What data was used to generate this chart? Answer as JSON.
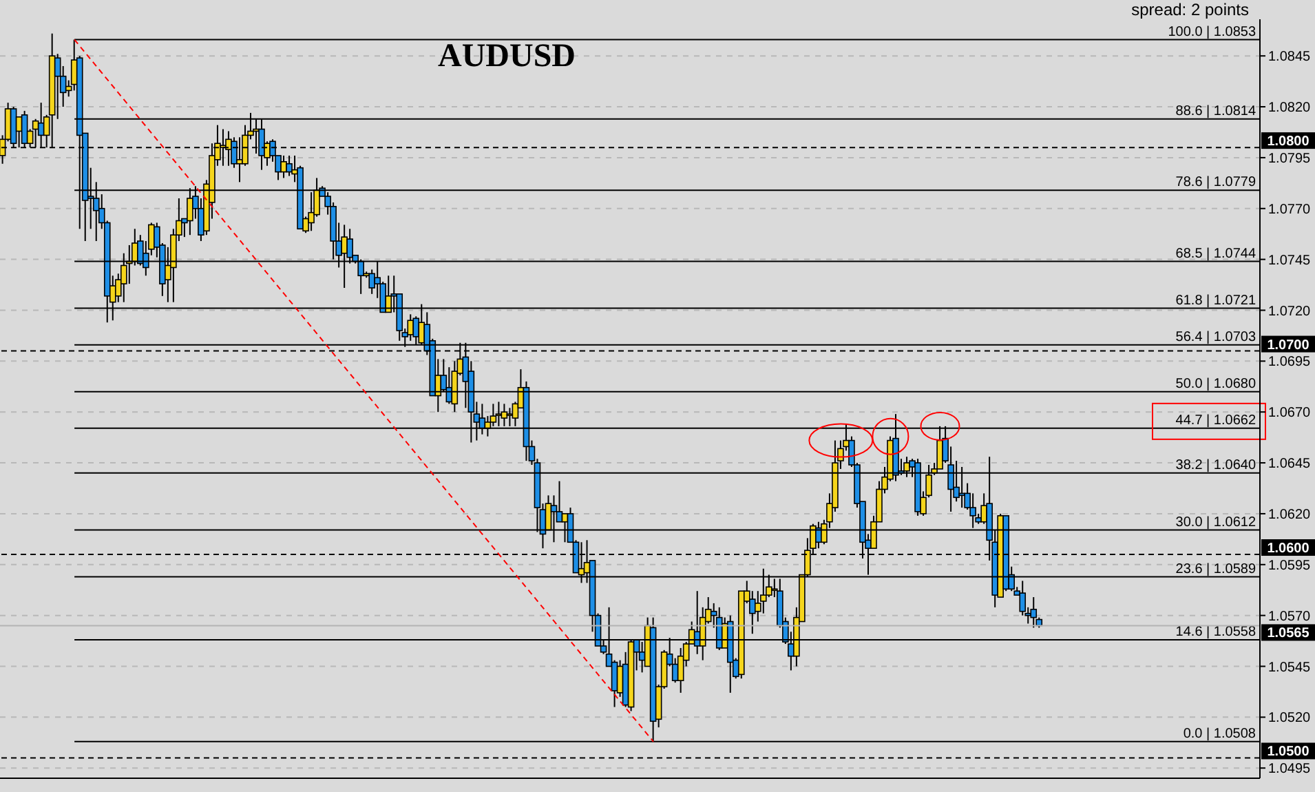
{
  "chart_data": {
    "type": "candlestick",
    "title": "AUDUSD",
    "annotations": [
      "spread: 2 points"
    ],
    "categories": [
      null,
      null,
      null,
      null,
      null,
      null,
      null,
      null,
      null,
      null,
      null,
      null,
      null,
      null,
      null,
      null,
      null,
      null,
      null,
      null,
      null,
      null,
      null,
      null,
      null,
      null,
      null,
      null,
      null,
      null,
      null,
      null,
      null,
      null,
      null,
      null,
      null,
      null,
      null,
      null,
      null,
      null,
      null,
      null,
      null,
      null,
      null,
      null,
      null,
      null,
      null,
      null,
      null,
      null,
      null,
      null,
      null,
      null,
      null,
      null,
      null,
      null,
      null,
      null,
      null,
      null,
      null,
      null,
      null,
      null,
      null,
      null,
      null,
      null,
      null,
      null,
      null,
      null,
      null,
      null,
      null,
      null,
      null,
      null,
      null,
      null,
      null,
      null,
      null,
      null,
      null,
      null,
      null,
      null,
      null,
      null,
      null,
      null,
      null,
      null,
      null,
      null,
      null,
      null,
      null,
      null,
      null,
      null,
      null,
      null,
      null,
      null,
      null,
      null,
      null,
      null,
      null,
      null,
      null,
      null,
      null,
      null,
      null,
      null,
      null,
      null,
      null,
      null,
      null,
      null,
      null,
      null,
      null,
      null,
      null,
      null,
      null,
      null,
      null,
      null,
      null,
      null,
      null,
      null,
      null,
      null,
      null,
      null,
      null,
      null,
      null,
      null,
      null,
      null,
      null,
      null,
      null,
      null,
      null,
      null,
      null,
      null,
      null,
      null,
      null,
      null,
      null,
      null,
      null,
      null,
      null,
      null,
      null,
      null,
      null,
      null,
      null,
      null,
      null,
      null,
      null,
      null,
      null,
      null,
      null,
      null,
      null,
      null,
      null,
      null,
      null,
      null,
      null,
      null,
      null,
      null,
      null,
      null,
      null,
      null,
      null,
      null,
      null,
      null,
      null,
      null,
      null,
      null,
      null,
      null,
      null,
      null,
      null,
      null,
      null,
      null,
      null,
      null,
      null,
      null,
      null,
      null,
      null,
      null,
      null,
      null,
      null,
      null,
      null
    ],
    "colors": [
      "#f5d51c",
      "#f5d51c",
      "#1e8fe6",
      "#f5d51c",
      "#1e8fe6",
      "#f5d51c",
      "#f5d51c",
      "#1e8fe6",
      "#f5d51c",
      "#f5d51c",
      "#1e8fe6",
      "#1e8fe6",
      "#f5d51c",
      "#f5d51c",
      "#1e8fe6",
      "#1e8fe6",
      "#1e8fe6",
      "#1e8fe6",
      "#1e8fe6",
      "#1e8fe6",
      "#f5d51c",
      "#f5d51c",
      "#f5d51c",
      "#f5d51c",
      "#f5d51c",
      "#1e8fe6",
      "#1e8fe6",
      "#f5d51c",
      "#1e8fe6",
      "#1e8fe6",
      "#f5d51c",
      "#f5d51c",
      "#f5d51c",
      "#1e8fe6",
      "#f5d51c",
      "#1e8fe6",
      "#1e8fe6",
      "#f5d51c",
      "#f5d51c",
      "#f5d51c",
      "#f5d51c",
      "#f5d51c",
      "#1e8fe6",
      "#f5d51c",
      "#f5d51c",
      "#f5d51c",
      "#f5d51c",
      "#1e8fe6",
      "#f5d51c",
      "#1e8fe6",
      "#1e8fe6",
      "#f5d51c",
      "#1e8fe6",
      "#f5d51c",
      "#1e8fe6",
      "#f5d51c",
      "#f5d51c",
      "#f5d51c",
      "#1e8fe6",
      "#1e8fe6",
      "#1e8fe6",
      "#1e8fe6",
      "#f5d51c",
      "#1e8fe6",
      "#1e8fe6",
      "#1e8fe6",
      "#f5d51c",
      "#1e8fe6",
      "#1e8fe6",
      "#1e8fe6",
      "#f5d51c",
      "#1e8fe6",
      "#1e8fe6",
      "#1e8fe6",
      "#f5d51c",
      "#1e8fe6",
      "#f5d51c",
      "#1e8fe6",
      "#1e8fe6",
      "#f5d51c",
      "#1e8fe6",
      "#1e8fe6",
      "#f5d51c",
      "#f5d51c",
      "#1e8fe6",
      "#1e8fe6",
      "#1e8fe6",
      "#1e8fe6",
      "#f5d51c",
      "#f5d51c",
      "#f5d51c",
      "#f5d51c",
      "#f5d51c",
      "#f5d51c",
      "#f5d51c",
      "#1e8fe6",
      "#1e8fe6",
      "#1e8fe6",
      "#1e8fe6",
      "#f5d51c",
      "#1e8fe6",
      "#1e8fe6",
      "#f5d51c",
      "#1e8fe6",
      "#1e8fe6",
      "#f5d51c",
      "#f5d51c",
      "#1e8fe6",
      "#1e8fe6",
      "#1e8fe6",
      "#1e8fe6",
      "#1e8fe6",
      "#f5d51c",
      "#1e8fe6",
      "#f5d51c",
      "#1e8fe6",
      "#1e8fe6",
      "#f5d51c",
      "#1e8fe6",
      "#f5d51c",
      "#f5d51c",
      "#1e8fe6",
      "#1e8fe6",
      "#f5d51c",
      "#f5d51c",
      "#f5d51c",
      "#1e8fe6",
      "#f5d51c",
      "#f5d51c",
      "#1e8fe6",
      "#1e8fe6",
      "#f5d51c",
      "#1e8fe6",
      "#1e8fe6",
      "#f5d51c",
      "#f5d51c",
      "#1e8fe6",
      "#f5d51c",
      "#f5d51c",
      "#f5d51c",
      "#f5d51c",
      "#1e8fe6",
      "#1e8fe6",
      "#1e8fe6",
      "#f5d51c",
      "#f5d51c",
      "#f5d51c",
      "#f5d51c",
      "#1e8fe6",
      "#f5d51c",
      "#f5d51c",
      "#f5d51c",
      "#f5d51c",
      "#f5d51c",
      "#1e8fe6",
      "#1e8fe6",
      "#1e8fe6",
      "#1e8fe6",
      "#f5d51c",
      "#f5d51c",
      "#f5d51c",
      "#f5d51c",
      "#1e8fe6",
      "#1e8fe6",
      "#f5d51c",
      "#1e8fe6",
      "#1e8fe6",
      "#f5d51c",
      "#f5d51c",
      "#f5d51c",
      "#f5d51c",
      "#1e8fe6",
      "#1e8fe6",
      "#1e8fe6",
      "#1e8fe6",
      "#1e8fe6",
      "#1e8fe6",
      "#1e8fe6",
      "#f5d51c",
      "#1e8fe6",
      "#1e8fe6",
      "#f5d51c",
      "#1e8fe6",
      "#1e8fe6",
      "#1e8fe6",
      "#1e8fe6",
      "#1e8fe6",
      "#1e8fe6",
      "#1e8fe6",
      null,
      null,
      null,
      null,
      null,
      null,
      null,
      null,
      null,
      null,
      null,
      null,
      null,
      null,
      null,
      null,
      null,
      null,
      null,
      null,
      null,
      null,
      null,
      null,
      null,
      null,
      null,
      null,
      null,
      null,
      null,
      null,
      null,
      null,
      null,
      null,
      null,
      null,
      null,
      null
    ],
    "ohlc": [
      [
        1.0796,
        1.0806,
        1.0792,
        1.0804
      ],
      [
        1.0804,
        1.0822,
        1.0803,
        1.0819
      ],
      [
        1.0819,
        1.082,
        1.08,
        1.0802
      ],
      [
        1.0808,
        1.0815,
        1.08,
        1.0815
      ],
      [
        1.0816,
        1.0818,
        1.08,
        1.0802
      ],
      [
        1.0802,
        1.0809,
        1.08,
        1.0808
      ],
      [
        1.0809,
        1.0814,
        1.08,
        1.0813
      ],
      [
        1.0812,
        1.0822,
        1.08,
        1.0806
      ],
      [
        1.0806,
        1.0816,
        1.08,
        1.0815
      ],
      [
        1.0816,
        1.0856,
        1.08,
        1.0845
      ],
      [
        1.0844,
        1.0846,
        1.0814,
        1.0835
      ],
      [
        1.0835,
        1.084,
        1.082,
        1.0827
      ],
      [
        1.0828,
        1.0833,
        1.0825,
        1.083
      ],
      [
        1.0831,
        1.0853,
        1.0828,
        1.0843
      ],
      [
        1.0844,
        1.0845,
        1.076,
        1.0806
      ],
      [
        1.0807,
        1.0807,
        1.0754,
        1.0774
      ],
      [
        1.0776,
        1.079,
        1.076,
        1.0775
      ],
      [
        1.0775,
        1.0783,
        1.0754,
        1.0769
      ],
      [
        1.077,
        1.0777,
        1.076,
        1.0763
      ],
      [
        1.0763,
        1.0764,
        1.0714,
        1.0727
      ],
      [
        1.0724,
        1.0737,
        1.0715,
        1.0732
      ],
      [
        1.0727,
        1.0738,
        1.0724,
        1.0735
      ],
      [
        1.0733,
        1.0748,
        1.0724,
        1.0742
      ],
      [
        1.0743,
        1.0752,
        1.0733,
        1.0744
      ],
      [
        1.0744,
        1.076,
        1.0742,
        1.0753
      ],
      [
        1.0754,
        1.0757,
        1.0742,
        1.0743
      ],
      [
        1.0748,
        1.0754,
        1.0737,
        1.0741
      ],
      [
        1.075,
        1.0763,
        1.0747,
        1.0762
      ],
      [
        1.0761,
        1.0763,
        1.0746,
        1.0751
      ],
      [
        1.0752,
        1.0753,
        1.0727,
        1.0733
      ],
      [
        1.0735,
        1.0751,
        1.0724,
        1.0742
      ],
      [
        1.0741,
        1.076,
        1.0724,
        1.0757
      ],
      [
        1.0757,
        1.0775,
        1.0754,
        1.0764
      ],
      [
        1.0765,
        1.0765,
        1.0756,
        1.0763
      ],
      [
        1.0764,
        1.078,
        1.0757,
        1.0775
      ],
      [
        1.0776,
        1.0781,
        1.0765,
        1.077
      ],
      [
        1.077,
        1.0775,
        1.0754,
        1.0757
      ],
      [
        1.0759,
        1.0784,
        1.0757,
        1.0782
      ],
      [
        1.0773,
        1.0802,
        1.0765,
        1.0796
      ],
      [
        1.0794,
        1.0811,
        1.0791,
        1.0802
      ],
      [
        1.08,
        1.0809,
        1.0791,
        1.0801
      ],
      [
        1.0799,
        1.0808,
        1.0791,
        1.0804
      ],
      [
        1.0803,
        1.0805,
        1.079,
        1.0792
      ],
      [
        1.0792,
        1.0805,
        1.0783,
        1.0794
      ],
      [
        1.0792,
        1.0811,
        1.0791,
        1.0806
      ],
      [
        1.0806,
        1.0817,
        1.0804,
        1.0808
      ],
      [
        1.0808,
        1.0814,
        1.0797,
        1.0809
      ],
      [
        1.0809,
        1.0814,
        1.0789,
        1.0796
      ],
      [
        1.0795,
        1.0803,
        1.0791,
        1.0802
      ],
      [
        1.0803,
        1.0804,
        1.0793,
        1.0796
      ],
      [
        1.0796,
        1.0796,
        1.0784,
        1.0788
      ],
      [
        1.0788,
        1.0796,
        1.0785,
        1.0793
      ],
      [
        1.0792,
        1.0796,
        1.0786,
        1.0788
      ],
      [
        1.0787,
        1.0796,
        1.0783,
        1.0789
      ],
      [
        1.079,
        1.0791,
        1.076,
        1.076
      ],
      [
        1.0759,
        1.0766,
        1.0758,
        1.0765
      ],
      [
        1.0763,
        1.0778,
        1.0759,
        1.0768
      ],
      [
        1.0767,
        1.0785,
        1.0766,
        1.0779
      ],
      [
        1.078,
        1.0781,
        1.0776,
        1.0776
      ],
      [
        1.0776,
        1.0778,
        1.0767,
        1.0771
      ],
      [
        1.0771,
        1.0773,
        1.0745,
        1.0754
      ],
      [
        1.0754,
        1.0763,
        1.0741,
        1.0747
      ],
      [
        1.0748,
        1.0762,
        1.0731,
        1.0756
      ],
      [
        1.0755,
        1.076,
        1.0743,
        1.0746
      ],
      [
        1.0747,
        1.0747,
        1.0743,
        1.0744
      ],
      [
        1.0744,
        1.0745,
        1.0728,
        1.0737
      ],
      [
        1.0737,
        1.0739,
        1.0736,
        1.0738
      ],
      [
        1.0738,
        1.074,
        1.0728,
        1.0731
      ],
      [
        1.0736,
        1.0744,
        1.0726,
        1.0733
      ],
      [
        1.0733,
        1.0734,
        1.0719,
        1.0719
      ],
      [
        1.0719,
        1.0737,
        1.0719,
        1.0727
      ],
      [
        1.0728,
        1.0737,
        1.0719,
        1.0727
      ],
      [
        1.0728,
        1.0728,
        1.0705,
        1.071
      ],
      [
        1.0709,
        1.0711,
        1.0702,
        1.0707
      ],
      [
        1.0708,
        1.0718,
        1.0705,
        1.0715
      ],
      [
        1.0716,
        1.0717,
        1.0703,
        1.0707
      ],
      [
        1.0704,
        1.0723,
        1.0703,
        1.0714
      ],
      [
        1.0713,
        1.0719,
        1.0698,
        1.07
      ],
      [
        1.0705,
        1.0706,
        1.0678,
        1.0678
      ],
      [
        1.0678,
        1.0696,
        1.067,
        1.0688
      ],
      [
        1.0688,
        1.0696,
        1.068,
        1.0681
      ],
      [
        1.0682,
        1.0692,
        1.0674,
        1.0675
      ],
      [
        1.0674,
        1.0695,
        1.067,
        1.069
      ],
      [
        1.0689,
        1.0704,
        1.0688,
        1.0696
      ],
      [
        1.0697,
        1.0704,
        1.0672,
        1.0685
      ],
      [
        1.069,
        1.0695,
        1.0655,
        1.067
      ],
      [
        1.0669,
        1.0675,
        1.0656,
        1.0665
      ],
      [
        1.0667,
        1.0674,
        1.0659,
        1.0662
      ],
      [
        1.0662,
        1.0668,
        1.0658,
        1.0665
      ],
      [
        1.0665,
        1.0674,
        1.0663,
        1.0668
      ],
      [
        1.0669,
        1.0675,
        1.0663,
        1.0669
      ],
      [
        1.0667,
        1.0674,
        1.0663,
        1.067
      ],
      [
        1.0669,
        1.0672,
        1.0663,
        1.0669
      ],
      [
        1.0667,
        1.0675,
        1.0663,
        1.0674
      ],
      [
        1.0672,
        1.0691,
        1.0672,
        1.0682
      ],
      [
        1.0682,
        1.0685,
        1.0646,
        1.0653
      ],
      [
        1.0653,
        1.0656,
        1.0644,
        1.0646
      ],
      [
        1.0645,
        1.0647,
        1.0611,
        1.0623
      ],
      [
        1.0622,
        1.0625,
        1.0603,
        1.061
      ],
      [
        1.0612,
        1.0629,
        1.0612,
        1.0625
      ],
      [
        1.0624,
        1.0629,
        1.0606,
        1.0621
      ],
      [
        1.0621,
        1.0636,
        1.0616,
        1.0616
      ],
      [
        1.0616,
        1.062,
        1.0606,
        1.062
      ],
      [
        1.062,
        1.0623,
        1.0606,
        1.0606
      ],
      [
        1.0606,
        1.0607,
        1.0591,
        1.0591
      ],
      [
        1.059,
        1.0606,
        1.0586,
        1.0593
      ],
      [
        1.0591,
        1.0607,
        1.0586,
        1.0596
      ],
      [
        1.0597,
        1.0597,
        1.0562,
        1.057
      ],
      [
        1.057,
        1.0571,
        1.0555,
        1.0555
      ],
      [
        1.0555,
        1.0558,
        1.0551,
        1.0552
      ],
      [
        1.0551,
        1.0574,
        1.0545,
        1.0545
      ],
      [
        1.0547,
        1.0548,
        1.0525,
        1.0533
      ],
      [
        1.0532,
        1.0548,
        1.053,
        1.0545
      ],
      [
        1.0546,
        1.0552,
        1.0525,
        1.0526
      ],
      [
        1.0525,
        1.0558,
        1.0523,
        1.0557
      ],
      [
        1.0558,
        1.0558,
        1.0543,
        1.0552
      ],
      [
        1.0552,
        1.0557,
        1.0542,
        1.0548
      ],
      [
        1.0545,
        1.0569,
        1.0545,
        1.0565
      ],
      [
        1.0564,
        1.0569,
        1.0508,
        1.0518
      ],
      [
        1.0519,
        1.0536,
        1.0515,
        1.0535
      ],
      [
        1.0535,
        1.0553,
        1.0534,
        1.0552
      ],
      [
        1.0551,
        1.0559,
        1.0545,
        1.0546
      ],
      [
        1.0546,
        1.0549,
        1.0537,
        1.0538
      ],
      [
        1.0538,
        1.0554,
        1.0532,
        1.055
      ],
      [
        1.0548,
        1.0557,
        1.0545,
        1.0556
      ],
      [
        1.0556,
        1.0567,
        1.0556,
        1.0563
      ],
      [
        1.0562,
        1.0582,
        1.0551,
        1.0555
      ],
      [
        1.0555,
        1.0574,
        1.0548,
        1.0569
      ],
      [
        1.0567,
        1.0579,
        1.0566,
        1.0573
      ],
      [
        1.0572,
        1.0576,
        1.0564,
        1.057
      ],
      [
        1.0569,
        1.0574,
        1.0553,
        1.0554
      ],
      [
        1.0554,
        1.0569,
        1.0554,
        1.0566
      ],
      [
        1.0567,
        1.057,
        1.0532,
        1.0547
      ],
      [
        1.0548,
        1.0549,
        1.0539,
        1.054
      ],
      [
        1.0541,
        1.0582,
        1.0539,
        1.0582
      ],
      [
        1.0577,
        1.0587,
        1.0576,
        1.0582
      ],
      [
        1.0578,
        1.0582,
        1.0561,
        1.0571
      ],
      [
        1.0572,
        1.0582,
        1.0567,
        1.0576
      ],
      [
        1.0577,
        1.0593,
        1.0571,
        1.058
      ],
      [
        1.058,
        1.059,
        1.0579,
        1.0584
      ],
      [
        1.0583,
        1.0588,
        1.0579,
        1.0583
      ],
      [
        1.0582,
        1.0588,
        1.0564,
        1.0565
      ],
      [
        1.0567,
        1.0569,
        1.0556,
        1.0557
      ],
      [
        1.0556,
        1.0562,
        1.0543,
        1.055
      ],
      [
        1.055,
        1.0574,
        1.0545,
        1.0569
      ],
      [
        1.0567,
        1.059,
        1.0567,
        1.059
      ],
      [
        1.059,
        1.0608,
        1.0589,
        1.0602
      ],
      [
        1.0603,
        1.0615,
        1.06,
        1.0614
      ],
      [
        1.0613,
        1.0616,
        1.0603,
        1.0606
      ],
      [
        1.0606,
        1.0617,
        1.0605,
        1.0615
      ],
      [
        1.0616,
        1.063,
        1.0613,
        1.0625
      ],
      [
        1.0623,
        1.0656,
        1.0621,
        1.0645
      ],
      [
        1.0646,
        1.0656,
        1.0642,
        1.0652
      ],
      [
        1.0653,
        1.0664,
        1.0651,
        1.0656
      ],
      [
        1.0656,
        1.0658,
        1.0643,
        1.0644
      ],
      [
        1.0644,
        1.0645,
        1.0623,
        1.0625
      ],
      [
        1.0626,
        1.0626,
        1.0598,
        1.0606
      ],
      [
        1.0607,
        1.061,
        1.059,
        1.0603
      ],
      [
        1.0603,
        1.0619,
        1.0603,
        1.0616
      ],
      [
        1.0616,
        1.0636,
        1.0616,
        1.0632
      ],
      [
        1.0632,
        1.0643,
        1.063,
        1.0638
      ],
      [
        1.0637,
        1.0658,
        1.0636,
        1.0656
      ],
      [
        1.0657,
        1.0669,
        1.0636,
        1.0639
      ],
      [
        1.0641,
        1.0647,
        1.0639,
        1.064
      ],
      [
        1.0641,
        1.0648,
        1.0638,
        1.0645
      ],
      [
        1.0646,
        1.0647,
        1.0638,
        1.0643
      ],
      [
        1.0645,
        1.0647,
        1.0619,
        1.0621
      ],
      [
        1.062,
        1.0631,
        1.0619,
        1.0628
      ],
      [
        1.0629,
        1.0644,
        1.0628,
        1.0639
      ],
      [
        1.064,
        1.0645,
        1.0639,
        1.0642
      ],
      [
        1.0642,
        1.0663,
        1.0642,
        1.0656
      ],
      [
        1.0657,
        1.0663,
        1.0645,
        1.0646
      ],
      [
        1.0644,
        1.0653,
        1.0621,
        1.0632
      ],
      [
        1.0633,
        1.0646,
        1.0626,
        1.0628
      ],
      [
        1.063,
        1.0643,
        1.0623,
        1.0629
      ],
      [
        1.063,
        1.0635,
        1.0622,
        1.0623
      ],
      [
        1.0623,
        1.063,
        1.0613,
        1.0619
      ],
      [
        1.0618,
        1.062,
        1.0615,
        1.0616
      ],
      [
        1.0616,
        1.063,
        1.0615,
        1.0624
      ],
      [
        1.0625,
        1.0648,
        1.0597,
        1.0607
      ],
      [
        1.0606,
        1.0612,
        1.0574,
        1.058
      ],
      [
        1.0579,
        1.062,
        1.0579,
        1.0619
      ],
      [
        1.0619,
        1.0619,
        1.0582,
        1.0583
      ],
      [
        1.059,
        1.0594,
        1.0582,
        1.0583
      ],
      [
        1.0582,
        1.0584,
        1.058,
        1.058
      ],
      [
        1.0581,
        1.0587,
        1.057,
        1.0572
      ],
      [
        1.0571,
        1.0574,
        1.0566,
        1.057
      ],
      [
        1.0573,
        1.0579,
        1.0564,
        1.0569
      ],
      [
        1.0568,
        1.0569,
        1.0564,
        1.0565
      ],
      null,
      null,
      null,
      null,
      null,
      null,
      null,
      null,
      null,
      null,
      null,
      null,
      null,
      null,
      null,
      null,
      null,
      null,
      null,
      null,
      null,
      null,
      null,
      null,
      null,
      null,
      null,
      null,
      null,
      null,
      null,
      null,
      null,
      null,
      null,
      null,
      null,
      null,
      null,
      null
    ],
    "series": [
      {
        "type": "line",
        "color": "#ff0000",
        "line_style": "dashed",
        "values": [
          null,
          null,
          null,
          null,
          null,
          null,
          null,
          null,
          null,
          null,
          null,
          null,
          null,
          1.0853,
          null,
          null,
          null,
          null,
          null,
          null,
          null,
          null,
          null,
          null,
          null,
          null,
          null,
          null,
          null,
          null,
          null,
          null,
          null,
          null,
          null,
          null,
          null,
          null,
          null,
          null,
          null,
          null,
          null,
          null,
          null,
          null,
          null,
          null,
          null,
          null,
          null,
          null,
          null,
          null,
          null,
          null,
          null,
          null,
          null,
          null,
          null,
          null,
          null,
          null,
          null,
          null,
          null,
          null,
          null,
          null,
          null,
          null,
          null,
          null,
          null,
          null,
          null,
          null,
          null,
          null,
          null,
          null,
          null,
          null,
          null,
          null,
          null,
          null,
          null,
          null,
          null,
          null,
          null,
          null,
          null,
          null,
          null,
          null,
          null,
          null,
          null,
          null,
          null,
          null,
          null,
          null,
          null,
          null,
          null,
          null,
          null,
          null,
          null,
          null,
          null,
          null,
          null,
          null,
          1.0508,
          null,
          null,
          null,
          null,
          null,
          null,
          null,
          null,
          null,
          null,
          null,
          null,
          null,
          null,
          null,
          null,
          null,
          null,
          null,
          null,
          null,
          null,
          null,
          null,
          null,
          null,
          null,
          null,
          null,
          null,
          null,
          null,
          null,
          null,
          null,
          null,
          null,
          null,
          null,
          null,
          null,
          null,
          null,
          null,
          null,
          null,
          null,
          null,
          null,
          null,
          null,
          null,
          null,
          null,
          null,
          null,
          null,
          null,
          null,
          null,
          null,
          null,
          null,
          null,
          null,
          null,
          null,
          null,
          null,
          null,
          null,
          null,
          null,
          null,
          null,
          null,
          null,
          null,
          null,
          null,
          null,
          null,
          null,
          null,
          null,
          null,
          null,
          null,
          null,
          null,
          null,
          null,
          null,
          null,
          null,
          null,
          null,
          null,
          null,
          null,
          null,
          null,
          null,
          null,
          null,
          null,
          null,
          null,
          null,
          null
        ]
      }
    ],
    "ylim": [
      1.049,
      1.0863
    ],
    "yticks": [
      1.0495,
      {
        "value": 1.052,
        "label": "1.0520"
      },
      1.0545,
      {
        "value": 1.057,
        "label": "1.0570"
      },
      1.0595,
      {
        "value": 1.062,
        "label": "1.0620"
      },
      1.0645,
      {
        "value": 1.067,
        "label": "1.0670"
      },
      1.0695,
      {
        "value": 1.072,
        "label": "1.0720"
      },
      1.0745,
      {
        "value": 1.077,
        "label": "1.0770"
      },
      1.0795,
      {
        "value": 1.082,
        "label": "1.0820"
      },
      1.0845
    ],
    "ref_lines": [
      {
        "axis": "y",
        "value": 1.0853,
        "label": "100.0 | 1.0853",
        "color": "#000000",
        "line_style": "solid"
      },
      {
        "axis": "y",
        "value": 1.0814,
        "label": "88.6 | 1.0814",
        "color": "#000000",
        "line_style": "solid"
      },
      {
        "axis": "y",
        "value": 1.0779,
        "label": "78.6 | 1.0779",
        "color": "#000000",
        "line_style": "solid"
      },
      {
        "axis": "y",
        "value": 1.0744,
        "label": "68.5 | 1.0744",
        "color": "#000000",
        "line_style": "solid"
      },
      {
        "axis": "y",
        "value": 1.0721,
        "label": "61.8 | 1.0721",
        "color": "#000000",
        "line_style": "solid"
      },
      {
        "axis": "y",
        "value": 1.0703,
        "label": "56.4 | 1.0703",
        "color": "#000000",
        "line_style": "solid"
      },
      {
        "axis": "y",
        "value": 1.068,
        "label": "50.0 | 1.0680",
        "color": "#000000",
        "line_style": "solid"
      },
      {
        "axis": "y",
        "value": 1.0662,
        "label": "44.7 | 1.0662",
        "color": "#000000",
        "line_style": "solid"
      },
      {
        "axis": "y",
        "value": 1.064,
        "label": "38.2 | 1.0640",
        "color": "#000000",
        "line_style": "solid"
      },
      {
        "axis": "y",
        "value": 1.0612,
        "label": "30.0 | 1.0612",
        "color": "#000000",
        "line_style": "solid"
      },
      {
        "axis": "y",
        "value": 1.0589,
        "label": "23.6 | 1.0589",
        "color": "#000000",
        "line_style": "solid"
      },
      {
        "axis": "y",
        "value": 1.0558,
        "label": "14.6 | 1.0558",
        "color": "#000000",
        "line_style": "solid"
      },
      {
        "axis": "y",
        "value": 1.0508,
        "label": "0.0 | 1.0508",
        "color": "#000000",
        "line_style": "solid"
      },
      {
        "axis": "y",
        "value": 1.08,
        "label": "1.0800",
        "color": "#000000",
        "line_style": "dashed"
      },
      {
        "axis": "y",
        "value": 1.07,
        "label": "1.0700",
        "color": "#000000",
        "line_style": "dashed"
      },
      {
        "axis": "y",
        "value": 1.06,
        "label": "1.0600",
        "color": "#000000",
        "line_style": "dashed"
      },
      {
        "axis": "y",
        "value": 1.05,
        "label": "1.0500",
        "color": "#000000",
        "line_style": "dashed"
      },
      {
        "axis": "y",
        "value": 1.0565,
        "label": "1.0565",
        "color": "#b4b4b4",
        "line_style": "solid"
      }
    ],
    "grid": true,
    "tick_labels": "y"
  }
}
